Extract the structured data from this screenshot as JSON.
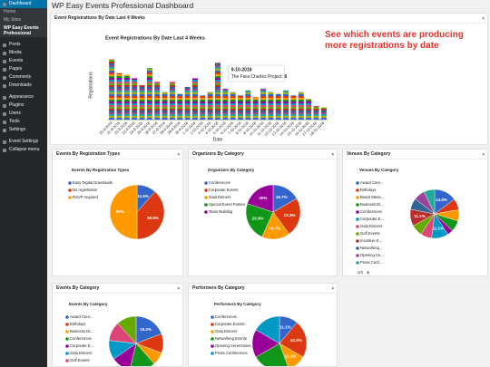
{
  "page_title": "WP Easy Events Professional Dashboard",
  "annotation": "See which events are producing more registrations by date",
  "sidebar": {
    "items": [
      "Dashboard",
      "Home",
      "My Sites",
      "WP Easy Events Professional",
      "Posts",
      "Media",
      "Events",
      "Pages",
      "Comments",
      "Downloads",
      "Appearance",
      "Plugins",
      "Users",
      "Tools",
      "Settings",
      "Event Settings",
      "Collapse menu"
    ]
  },
  "chart_data": [
    {
      "type": "bar",
      "panel_title": "Event Registrations By Date Last 4 Weeks",
      "title": "Event Registrations By Date Last 4 Weeks",
      "x_label": "Date",
      "y_label": "Registrations",
      "categories": [
        "20-9-2016",
        "21-9-2016",
        "22-9-2016",
        "23-9-2016",
        "24-9-2016",
        "25-9-2016",
        "26-9-2016",
        "27-9-2016",
        "28-9-2016",
        "29-9-2016",
        "30-9-2016",
        "1-10-2016",
        "2-10-2016",
        "3-10-2016",
        "4-10-2016",
        "5-10-2016",
        "6-10-2016",
        "7-10-2016",
        "8-10-2016",
        "9-10-2016",
        "10-10-2016",
        "11-10-2016",
        "12-10-2016",
        "13-10-2016",
        "14-10-2016",
        "15-10-2016",
        "16-10-2016",
        "17-10-2016",
        "18-10-2016"
      ],
      "values": [
        35,
        27,
        26,
        24,
        20,
        30,
        22,
        16,
        22,
        15,
        19,
        24,
        14,
        16,
        33,
        18,
        16,
        14,
        17,
        13,
        18,
        16,
        15,
        17,
        14,
        16,
        12,
        8,
        7
      ],
      "ylim": [
        0,
        40
      ],
      "tooltip": {
        "date": "9-10-2016",
        "label": "The Fara Charles Project:",
        "value": 6
      }
    },
    {
      "type": "pie",
      "panel_title": "Events By Registration Types",
      "title": "Events By Registration Types",
      "categories": [
        "Easy Digital Downloads",
        "No registration",
        "RSVP required"
      ],
      "values": [
        11.5,
        38.5,
        50
      ],
      "value_labels": [
        "11.5%",
        "38.5%",
        "50%"
      ],
      "colors": [
        "#3366cc",
        "#dc3912",
        "#ff9900"
      ]
    },
    {
      "type": "pie",
      "panel_title": "Organizers By Category",
      "title": "Organizers By Category",
      "categories": [
        "Conferences",
        "Corporate Events",
        "Gala Dinners",
        "Special Event Parties",
        "Team Building"
      ],
      "values": [
        16.7,
        23.3,
        16.7,
        23.3,
        20
      ],
      "value_labels": [
        "16.7%",
        "23.3%",
        "16.7%",
        "23.3%",
        "20%"
      ],
      "colors": [
        "#3366cc",
        "#dc3912",
        "#ff9900",
        "#109618",
        "#990099"
      ]
    },
    {
      "type": "pie",
      "panel_title": "Venues By Category",
      "title": "Venues By Category",
      "categories": [
        "Award Cere...",
        "Birthdays",
        "Board Meeti...",
        "Business Di...",
        "Conferences",
        "Corporate E...",
        "Gala Dinners",
        "Golf Events",
        "Incentive E...",
        "Networking...",
        "Opening Ce...",
        "Press Conf..."
      ],
      "values": [
        14.8,
        7.4,
        7.4,
        7.4,
        3.7,
        11.1,
        7.4,
        7.4,
        11.1,
        7.4,
        7.4,
        7.1
      ],
      "value_labels": [
        "14.8%",
        null,
        null,
        null,
        null,
        "11.1%",
        null,
        null,
        "11.1%",
        null,
        null,
        null
      ],
      "colors": [
        "#3366cc",
        "#dc3912",
        "#ff9900",
        "#109618",
        "#990099",
        "#0099c6",
        "#dd4477",
        "#66aa00",
        "#b82e2e",
        "#316395",
        "#994499",
        "#22aa99"
      ],
      "legend_pager": "1/3"
    },
    {
      "type": "pie",
      "panel_title": "Events By Category",
      "title": "Events By Category",
      "categories": [
        "Award Cere...",
        "Birthdays",
        "Business Di...",
        "Conferences",
        "Corporate E...",
        "Gala Dinners",
        "Golf Events",
        "Incentive E..."
      ],
      "values": [
        19.2,
        11.5,
        7.7,
        15.4,
        11.5,
        11.5,
        11.5,
        11.7
      ],
      "value_labels": [
        "19.2%",
        null,
        null,
        null,
        null,
        null,
        null,
        null
      ],
      "colors": [
        "#3366cc",
        "#dc3912",
        "#ff9900",
        "#109618",
        "#990099",
        "#0099c6",
        "#dd4477",
        "#66aa00"
      ]
    },
    {
      "type": "pie",
      "panel_title": "Performers By Category",
      "title": "Performers By Category",
      "categories": [
        "Conferences",
        "Corporate Events",
        "Gala Dinners",
        "Networking Events",
        "Opening Ceremonies",
        "Press Conferences"
      ],
      "values": [
        11.1,
        22.2,
        11.1,
        22.2,
        16.7,
        16.7
      ],
      "value_labels": [
        "11.1%",
        "22.2%",
        "11.1%",
        null,
        null,
        null
      ],
      "colors": [
        "#3366cc",
        "#dc3912",
        "#ff9900",
        "#109618",
        "#990099",
        "#0099c6"
      ]
    }
  ]
}
